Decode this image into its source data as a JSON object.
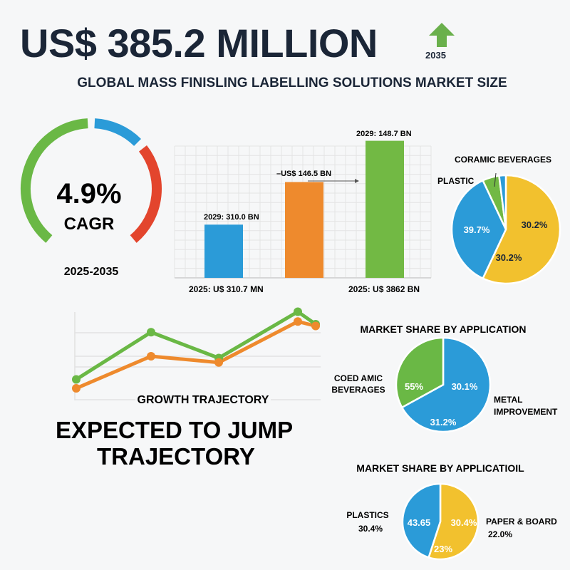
{
  "header": {
    "headline": "US$ 385.2 MILLION",
    "year": "2035",
    "subtitle": "GLOBAL MASS FINISLING LABELLING SOLUTIONS MARKET SIZE",
    "arrow_icon": "up-arrow-icon",
    "arrow_color": "#6ab04c"
  },
  "gauge": {
    "value": "4.9%",
    "label": "CAGR",
    "period": "2025-2035",
    "colors": [
      "#6ab845",
      "#2b9bd8",
      "#e3452d"
    ]
  },
  "chart_data": [
    {
      "type": "bar",
      "categories": [
        "",
        "",
        ""
      ],
      "values": [
        4,
        7.2,
        10.3
      ],
      "colors": [
        "#2b9bd8",
        "#ee8a2d",
        "#72b944"
      ],
      "grid": true,
      "labels": {
        "bar1_top": "2029: 310.0 BN",
        "bar2_top": "–US$ 146.5 BN",
        "bar3_top": "2029: 148.7 BN",
        "bottom_left": "2025: U$ 310.7 MN",
        "bottom_right": "2025: U$ 3862 BN"
      }
    },
    {
      "type": "pie",
      "labels": [
        "CORAMIC BEVERAGES",
        "PLASTIC"
      ],
      "slices": [
        {
          "value": 57,
          "color": "#f2c12e",
          "labels": [
            "30.2%",
            "30.2%"
          ]
        },
        {
          "value": 36,
          "color": "#2b9bd8",
          "labels": [
            "39.7%"
          ]
        },
        {
          "value": 5,
          "color": "#72b944",
          "labels": []
        },
        {
          "value": 2,
          "color": "#2b9bd8",
          "labels": []
        }
      ]
    },
    {
      "type": "line",
      "title": "GROWTH TRAJECTORY",
      "x": [
        1,
        2,
        3,
        4,
        5
      ],
      "series": [
        {
          "color": "#6ab845",
          "values": [
            2.2,
            7.5,
            4.6,
            9.8,
            8.4
          ]
        },
        {
          "color": "#ee8a2d",
          "values": [
            1.2,
            4.8,
            4.1,
            8.7,
            8.2
          ]
        }
      ],
      "grid": true
    },
    {
      "type": "pie",
      "title": "MARKET SHARE BY APPLICATION",
      "labels": [
        "COED AMIC BEVERAGES",
        "METAL IMPROVEMENT"
      ],
      "slices": [
        {
          "value": 67,
          "color": "#2b9bd8",
          "labels": [
            "30.1%",
            "31.2%"
          ]
        },
        {
          "value": 33,
          "color": "#6ab845",
          "labels": [
            "55%"
          ]
        }
      ]
    },
    {
      "type": "pie",
      "title": "MARKET SHARE BY APPLICATIOIL",
      "labels": [
        "PLASTICS",
        "30.4%",
        "PAPER & BOARD",
        "22.0%"
      ],
      "slices": [
        {
          "value": 55,
          "color": "#f2c12e",
          "labels": [
            "30.4%",
            "23%"
          ]
        },
        {
          "value": 45,
          "color": "#2b9bd8",
          "labels": [
            "43.65"
          ]
        }
      ]
    }
  ],
  "tagline": {
    "line1": "EXPECTED TO JUMP",
    "line2": "TRAJECTORY"
  }
}
